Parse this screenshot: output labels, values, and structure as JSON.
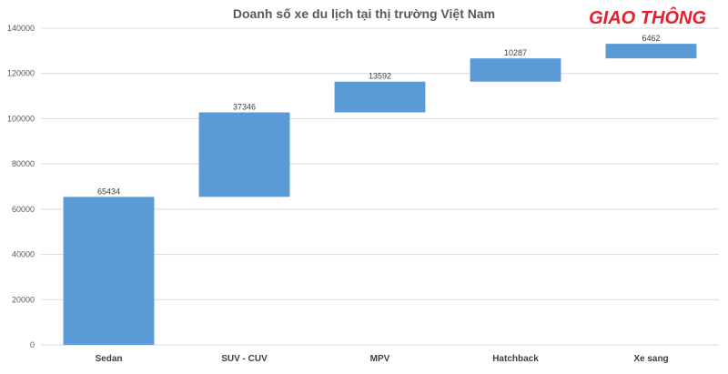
{
  "brand": {
    "logo_text": "GIAO THÔNG",
    "logo_color": "#e5202e"
  },
  "chart_data": {
    "type": "bar",
    "subtype": "waterfall",
    "title": "Doanh số xe du lịch tại thị trường Việt Nam",
    "xlabel": "",
    "ylabel": "",
    "categories": [
      "Sedan",
      "SUV - CUV",
      "MPV",
      "Hatchback",
      "Xe sang"
    ],
    "values": [
      65434,
      37346,
      13592,
      10287,
      6462
    ],
    "ylim": [
      0,
      140000
    ],
    "yticks": [
      0,
      20000,
      40000,
      60000,
      80000,
      100000,
      120000,
      140000
    ],
    "ytick_labels": [
      "0",
      "20000",
      "40000",
      "60000",
      "80000",
      "100000",
      "120000",
      "140000"
    ],
    "grid": true,
    "legend": "none",
    "bar_color": "#5b9bd5",
    "grid_color": "#d9d9d9"
  }
}
